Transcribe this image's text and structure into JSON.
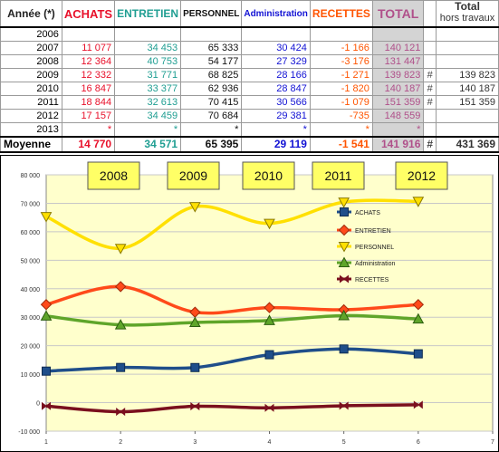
{
  "table": {
    "headers": {
      "annee": "Année (*)",
      "achats": "ACHATS",
      "entretien": "ENTRETIEN",
      "personnel": "PERSONNEL",
      "administration": "Administration",
      "recettes": "RECETTES",
      "total": "TOTAL",
      "hors_total": "Total",
      "hors_sub": "hors travaux"
    },
    "rows": [
      {
        "year": "2006",
        "achats": "",
        "entretien": "",
        "personnel": "",
        "administration": "",
        "recettes": "",
        "total": "",
        "mark": "",
        "hors": ""
      },
      {
        "year": "2007",
        "achats": "11 077",
        "entretien": "34 453",
        "personnel": "65 333",
        "administration": "30 424",
        "recettes": "-1 166",
        "total": "140 121",
        "mark": "",
        "hors": ""
      },
      {
        "year": "2008",
        "achats": "12 364",
        "entretien": "40 753",
        "personnel": "54 177",
        "administration": "27 329",
        "recettes": "-3 176",
        "total": "131 447",
        "mark": "",
        "hors": ""
      },
      {
        "year": "2009",
        "achats": "12 332",
        "entretien": "31 771",
        "personnel": "68 825",
        "administration": "28 166",
        "recettes": "-1 271",
        "total": "139 823",
        "mark": "#",
        "hors": "139 823"
      },
      {
        "year": "2010",
        "achats": "16 847",
        "entretien": "33 377",
        "personnel": "62 936",
        "administration": "28 847",
        "recettes": "-1 820",
        "total": "140 187",
        "mark": "#",
        "hors": "140 187"
      },
      {
        "year": "2011",
        "achats": "18 844",
        "entretien": "32 613",
        "personnel": "70 415",
        "administration": "30 566",
        "recettes": "-1 079",
        "total": "151 359",
        "mark": "#",
        "hors": "151 359"
      },
      {
        "year": "2012",
        "achats": "17 157",
        "entretien": "34 459",
        "personnel": "70 684",
        "administration": "29 381",
        "recettes": "-735",
        "total": "148 559",
        "mark": "",
        "hors": ""
      },
      {
        "year": "2013",
        "achats": "*",
        "entretien": "*",
        "personnel": "*",
        "administration": "*",
        "recettes": "*",
        "total": "*",
        "mark": "",
        "hors": ""
      }
    ],
    "average": {
      "label": "Moyenne",
      "achats": "14 770",
      "entretien": "34 571",
      "personnel": "65 395",
      "administration": "29 119",
      "recettes": "-1 541",
      "total": "141 916",
      "mark": "#",
      "hors": "431 369"
    }
  },
  "colors": {
    "achats": "#1f4e8a",
    "entretien": "#ff4a1a",
    "personnel": "#ffe000",
    "administration": "#5fa52a",
    "recettes": "#7a0f1e",
    "plot_bg": "#ffffcc",
    "callout_bg": "#ffff66"
  },
  "chart_data": {
    "type": "line",
    "x": [
      1,
      2,
      3,
      4,
      5,
      6
    ],
    "xlim": [
      1,
      7
    ],
    "xticks": [
      "1",
      "2",
      "3",
      "4",
      "5",
      "6",
      "7"
    ],
    "ylim": [
      -10000,
      80000
    ],
    "yticks": [
      "-10 000",
      "0",
      "10 000",
      "20 000",
      "30 000",
      "40 000",
      "50 000",
      "60 000",
      "70 000",
      "80 000"
    ],
    "year_labels": [
      "2008",
      "2009",
      "2010",
      "2011",
      "2012"
    ],
    "grid": true,
    "legend_position": "right",
    "series": [
      {
        "name": "ACHATS",
        "marker": "square",
        "values": [
          11077,
          12364,
          12332,
          16847,
          18844,
          17157
        ]
      },
      {
        "name": "ENTRETIEN",
        "marker": "diamond",
        "values": [
          34453,
          40753,
          31771,
          33377,
          32613,
          34459
        ]
      },
      {
        "name": "PERSONNEL",
        "marker": "triangle-down",
        "values": [
          65333,
          54177,
          68825,
          62936,
          70415,
          70684
        ]
      },
      {
        "name": "Administration",
        "marker": "triangle-up",
        "values": [
          30424,
          27329,
          28166,
          28847,
          30566,
          29381
        ]
      },
      {
        "name": "RECETTES",
        "marker": "bowtie",
        "values": [
          -1166,
          -3176,
          -1271,
          -1820,
          -1079,
          -735
        ]
      }
    ]
  }
}
